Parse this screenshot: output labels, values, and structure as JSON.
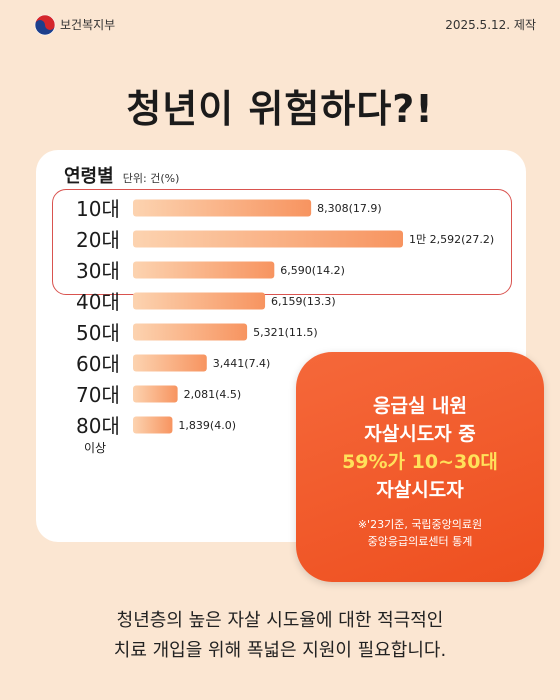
{
  "header": {
    "ministry": "보건복지부",
    "date": "2025.5.12. 제작"
  },
  "title": "청년이 위험하다?!",
  "card": {
    "title": "연령별",
    "unit": "단위: 건(%)"
  },
  "colors": {
    "bar_start": "#fcd3b0",
    "bar_end": "#f79460",
    "highlight": "#d9534f",
    "callout": "#ef5a2a",
    "callout_accent": "#ffe15a"
  },
  "chart_data": {
    "type": "bar",
    "orientation": "horizontal",
    "title": "연령별",
    "unit": "단위: 건(%)",
    "categories": [
      "10대",
      "20대",
      "30대",
      "40대",
      "50대",
      "60대",
      "70대",
      "80대 이상"
    ],
    "values": [
      8308,
      12592,
      6590,
      6159,
      5321,
      3441,
      2081,
      1839
    ],
    "percent": [
      17.9,
      27.2,
      14.2,
      13.3,
      11.5,
      7.4,
      4.5,
      4.0
    ],
    "data_labels": [
      "8,308(17.9)",
      "1만 2,592(27.2)",
      "6,590(14.2)",
      "6,159(13.3)",
      "5,321(11.5)",
      "3,441(7.4)",
      "2,081(4.5)",
      "1,839(4.0)"
    ],
    "highlighted_categories": [
      "10대",
      "20대",
      "30대"
    ],
    "xlim": [
      0,
      12592
    ],
    "grid": false,
    "legend": "none"
  },
  "callout": {
    "line1": "응급실 내원",
    "line2": "자살시도자 중",
    "line3": "59%가 10~30대",
    "line4": "자살시도자",
    "note1": "※'23기준, 국립중앙의료원",
    "note2": "중앙응급의료센터 통계"
  },
  "caption": {
    "line1": "청년층의 높은 자살 시도율에 대한 적극적인",
    "line2": "치료 개입을 위해 폭넓은 지원이 필요합니다."
  }
}
